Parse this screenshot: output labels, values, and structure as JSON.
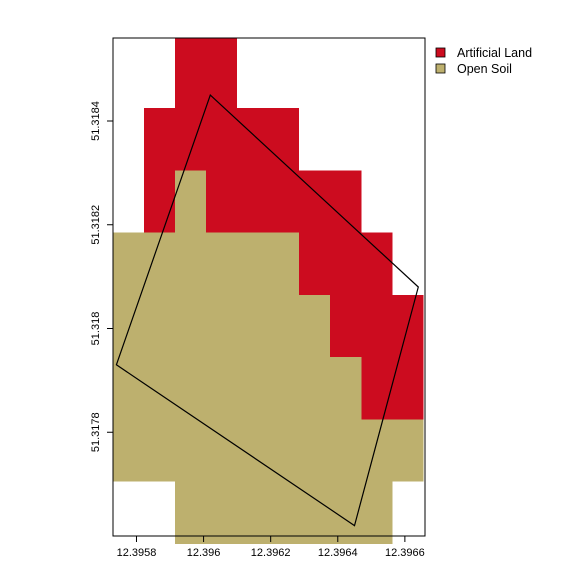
{
  "chart_data": {
    "type": "heatmap",
    "title": "",
    "xlabel": "",
    "ylabel": "",
    "xlim": [
      12.39573,
      12.39666
    ],
    "ylim": [
      51.3176,
      51.31856
    ],
    "x_ticks": [
      12.3958,
      12.396,
      12.3962,
      12.3964,
      12.3966
    ],
    "x_tick_labels": [
      "12.3958",
      "12.396",
      "12.3962",
      "12.3964",
      "12.3966"
    ],
    "y_ticks": [
      51.3178,
      51.318,
      51.3182,
      51.3184
    ],
    "y_tick_labels": [
      "51.3178",
      "51.318",
      "51.3182",
      "51.3184"
    ],
    "raster": {
      "x_edges": [
        12.39573,
        12.395915,
        12.3961,
        12.396285,
        12.39647,
        12.396655
      ],
      "x_edges_fine": [
        12.39573,
        12.3958225,
        12.395915,
        12.3960075,
        12.3961,
        12.3961925,
        12.396285,
        12.3963775,
        12.39647,
        12.3965625,
        12.396655
      ],
      "classes": [
        "Artificial Land",
        "Open Soil"
      ],
      "colors": {
        "Artificial Land": "#cc0c1f",
        "Open Soil": "#bdb06e"
      },
      "cells": [
        {
          "x0": 12.395915,
          "x1": 12.3961,
          "y0": 51.318425,
          "y1": 51.31856,
          "class": "Artificial Land"
        },
        {
          "x0": 12.3958225,
          "x1": 12.396285,
          "y0": 51.318305,
          "y1": 51.318425,
          "class": "Artificial Land"
        },
        {
          "x0": 12.3958225,
          "x1": 12.395915,
          "y0": 51.318185,
          "y1": 51.318305,
          "class": "Artificial Land"
        },
        {
          "x0": 12.3960075,
          "x1": 12.396285,
          "y0": 51.318185,
          "y1": 51.318305,
          "class": "Artificial Land"
        },
        {
          "x0": 12.396285,
          "x1": 12.39647,
          "y0": 51.318185,
          "y1": 51.318305,
          "class": "Artificial Land"
        },
        {
          "x0": 12.396285,
          "x1": 12.3965625,
          "y0": 51.318065,
          "y1": 51.318185,
          "class": "Artificial Land"
        },
        {
          "x0": 12.3963775,
          "x1": 12.396655,
          "y0": 51.317945,
          "y1": 51.318065,
          "class": "Artificial Land"
        },
        {
          "x0": 12.39647,
          "x1": 12.396655,
          "y0": 51.317825,
          "y1": 51.317945,
          "class": "Artificial Land"
        },
        {
          "x0": 12.395915,
          "x1": 12.3960075,
          "y0": 51.318185,
          "y1": 51.318305,
          "class": "Open Soil"
        },
        {
          "x0": 12.39573,
          "x1": 12.396285,
          "y0": 51.318065,
          "y1": 51.318185,
          "class": "Open Soil"
        },
        {
          "x0": 12.39573,
          "x1": 12.3963775,
          "y0": 51.317945,
          "y1": 51.318065,
          "class": "Open Soil"
        },
        {
          "x0": 12.39573,
          "x1": 12.39647,
          "y0": 51.317825,
          "y1": 51.317945,
          "class": "Open Soil"
        },
        {
          "x0": 12.39573,
          "x1": 12.396655,
          "y0": 51.317705,
          "y1": 51.317825,
          "class": "Open Soil"
        },
        {
          "x0": 12.395915,
          "x1": 12.3965625,
          "y0": 51.317585,
          "y1": 51.317705,
          "class": "Open Soil"
        },
        {
          "x0": 12.3961,
          "x1": 12.3965625,
          "y0": 51.3176,
          "y1": 51.317585,
          "class": "Open Soil"
        }
      ]
    },
    "polygon": [
      [
        12.39602,
        51.31845
      ],
      [
        12.39664,
        51.31808
      ],
      [
        12.39645,
        51.31762
      ],
      [
        12.39574,
        51.31793
      ]
    ],
    "legend": {
      "position": "top-right",
      "entries": [
        {
          "label": "Artificial Land",
          "color": "#cc0c1f"
        },
        {
          "label": "Open Soil",
          "color": "#bdb06e"
        }
      ]
    },
    "grid": false
  }
}
